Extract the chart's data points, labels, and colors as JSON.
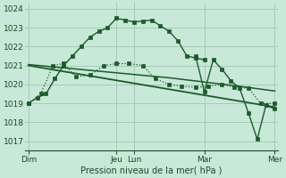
{
  "bg_color": "#c8e8d8",
  "grid_color": "#a8c8b8",
  "line_color": "#1a5c28",
  "ylabel": "Pression niveau de la mer( hPa )",
  "ylim": [
    1016.5,
    1024.3
  ],
  "yticks": [
    1017,
    1018,
    1019,
    1020,
    1021,
    1022,
    1023,
    1024
  ],
  "xlim": [
    -0.2,
    14.2
  ],
  "x_ticks": [
    0,
    5,
    6,
    10,
    14
  ],
  "x_labels": [
    "Dim",
    "Jeu",
    "Lun",
    "Mar",
    "Mer"
  ],
  "x_vlines": [
    0,
    5,
    6,
    10,
    14
  ],
  "series": [
    {
      "x": [
        0,
        0.5,
        1,
        1.5,
        2,
        2.5,
        3,
        3.5,
        4,
        4.5,
        5,
        5.5,
        6,
        6.5,
        7,
        7.5,
        8,
        8.5,
        9,
        9.5,
        10,
        10.5,
        11
      ],
      "y": [
        1019.0,
        1019.3,
        1019.5,
        1020.3,
        1021.0,
        1021.5,
        1022.0,
        1022.5,
        1022.8,
        1023.0,
        1023.5,
        1023.4,
        1023.3,
        1023.35,
        1023.4,
        1023.1,
        1022.8,
        1022.3,
        1021.5,
        1021.4,
        1021.3,
        null,
        null
      ],
      "style": "-",
      "marker": "s",
      "markersize": 2.2,
      "linewidth": 1.0,
      "zorder": 4
    },
    {
      "x": [
        0,
        0.7,
        1.4,
        2,
        2.7,
        3.5,
        4.3,
        5,
        5.7,
        6.5,
        7.2,
        8,
        8.7,
        9.5,
        10.2,
        11,
        11.7,
        12.5,
        13.2,
        14
      ],
      "y": [
        1019.0,
        1019.5,
        1021.0,
        1021.1,
        1020.4,
        1020.5,
        1021.0,
        1021.1,
        1021.1,
        1021.0,
        1020.3,
        1020.0,
        1019.9,
        1019.85,
        1019.9,
        1020.0,
        1019.85,
        1019.8,
        1019.0,
        1019.0
      ],
      "style": ":",
      "marker": "s",
      "markersize": 2.2,
      "linewidth": 0.9,
      "zorder": 3
    },
    {
      "x": [
        0,
        14
      ],
      "y": [
        1021.0,
        1018.8
      ],
      "style": "-",
      "marker": null,
      "markersize": 0,
      "linewidth": 1.3,
      "zorder": 2
    },
    {
      "x": [
        0,
        4,
        8,
        12,
        14
      ],
      "y": [
        1021.05,
        1020.7,
        1020.35,
        1019.9,
        1019.65
      ],
      "style": "-",
      "marker": null,
      "markersize": 0,
      "linewidth": 1.1,
      "zorder": 2
    },
    {
      "x": [
        9.5,
        10,
        10.5,
        11,
        11.5,
        12,
        12.5,
        13,
        13.5,
        14
      ],
      "y": [
        1021.5,
        1019.6,
        1021.3,
        1020.8,
        1020.2,
        1019.8,
        1018.5,
        1017.1,
        1018.9,
        1018.7
      ],
      "style": "-",
      "marker": "s",
      "markersize": 2.2,
      "linewidth": 1.0,
      "zorder": 4
    }
  ]
}
